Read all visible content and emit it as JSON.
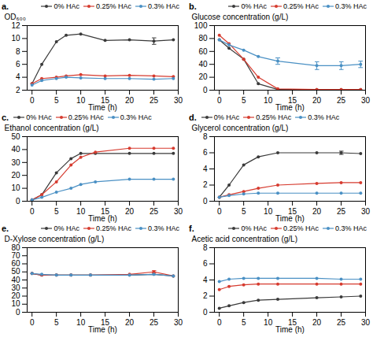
{
  "chart_data": [
    {
      "type": "line",
      "title": "a.",
      "xlabel": "Time (h)",
      "ylabel": "OD₆₀₀",
      "x": [
        0,
        2,
        5,
        7,
        10,
        15,
        20,
        25,
        29
      ],
      "series": [
        {
          "name": "0% HAc",
          "color": "#3a3a3a",
          "marker": "circle",
          "values": [
            3.0,
            6.0,
            9.5,
            10.5,
            10.7,
            9.7,
            9.8,
            9.6,
            9.8
          ],
          "errors": [
            null,
            null,
            null,
            null,
            null,
            null,
            null,
            0.5,
            null
          ]
        },
        {
          "name": "0.25% HAc",
          "color": "#d63b2f",
          "marker": "circle",
          "values": [
            3.0,
            3.8,
            4.0,
            4.2,
            4.4,
            4.2,
            4.3,
            4.2,
            4.1
          ]
        },
        {
          "name": "0.3% HAc",
          "color": "#4a90c4",
          "marker": "circle",
          "values": [
            2.8,
            3.5,
            3.8,
            4.0,
            3.9,
            3.8,
            3.8,
            3.7,
            3.8
          ]
        }
      ],
      "xlim": [
        -1,
        30
      ],
      "xticks": [
        0,
        5,
        10,
        15,
        20,
        25,
        30
      ],
      "ylim": [
        2,
        12
      ],
      "yticks": [
        2,
        4,
        6,
        8,
        10,
        12
      ],
      "legend": "upper right",
      "grid": false
    },
    {
      "type": "line",
      "title": "b.",
      "xlabel": "Time (h)",
      "ylabel": "Glucose concentration (g/L)",
      "x": [
        0,
        2,
        5,
        8,
        12,
        20,
        25,
        29
      ],
      "series": [
        {
          "name": "0% HAc",
          "color": "#3a3a3a",
          "marker": "circle",
          "values": [
            78,
            65,
            48,
            10,
            1,
            1,
            1,
            1
          ]
        },
        {
          "name": "0.25% HAc",
          "color": "#d63b2f",
          "marker": "circle",
          "values": [
            85,
            72,
            48,
            20,
            2,
            1,
            1,
            1
          ]
        },
        {
          "name": "0.3% HAc",
          "color": "#4a90c4",
          "marker": "circle",
          "values": [
            78,
            70,
            62,
            52,
            45,
            38,
            38,
            40
          ],
          "errors": [
            0,
            0,
            0,
            0,
            5,
            6,
            6,
            5
          ]
        }
      ],
      "xlim": [
        -1,
        30
      ],
      "xticks": [
        0,
        5,
        10,
        15,
        20,
        25,
        30
      ],
      "ylim": [
        0,
        100
      ],
      "yticks": [
        0,
        20,
        40,
        60,
        80,
        100
      ],
      "legend": "upper right",
      "grid": false
    },
    {
      "type": "line",
      "title": "c.",
      "xlabel": "Time (h)",
      "ylabel": "Ethanol concentration (g/L)",
      "x": [
        0,
        2,
        5,
        8,
        10,
        13,
        20,
        25,
        29
      ],
      "series": [
        {
          "name": "0% HAc",
          "color": "#3a3a3a",
          "marker": "circle",
          "values": [
            1,
            5,
            22,
            33,
            37,
            37,
            37,
            37,
            37
          ]
        },
        {
          "name": "0.25% HAc",
          "color": "#d63b2f",
          "marker": "circle",
          "values": [
            1,
            5,
            15,
            28,
            34,
            38,
            41,
            41,
            41
          ]
        },
        {
          "name": "0.3% HAc",
          "color": "#4a90c4",
          "marker": "circle",
          "values": [
            1,
            3,
            7,
            10,
            13,
            15,
            17,
            17,
            17
          ]
        }
      ],
      "xlim": [
        -1,
        30
      ],
      "xticks": [
        0,
        5,
        10,
        15,
        20,
        25,
        30
      ],
      "ylim": [
        0,
        50
      ],
      "yticks": [
        0,
        10,
        20,
        30,
        40,
        50
      ],
      "legend": "upper left",
      "grid": false
    },
    {
      "type": "line",
      "title": "d.",
      "xlabel": "Time (h)",
      "ylabel": "Glycerol concentration (g/L)",
      "x": [
        0,
        2,
        5,
        8,
        12,
        20,
        25,
        29
      ],
      "series": [
        {
          "name": "0% HAc",
          "color": "#3a3a3a",
          "marker": "circle",
          "values": [
            0.5,
            2.0,
            4.5,
            5.5,
            6.0,
            6.0,
            6.0,
            5.9
          ],
          "errors": [
            null,
            null,
            null,
            null,
            null,
            null,
            0.2,
            null
          ]
        },
        {
          "name": "0.25% HAc",
          "color": "#d63b2f",
          "marker": "circle",
          "values": [
            0.5,
            0.8,
            1.2,
            1.6,
            2.0,
            2.2,
            2.3,
            2.3
          ]
        },
        {
          "name": "0.3% HAc",
          "color": "#4a90c4",
          "marker": "circle",
          "values": [
            0.5,
            0.7,
            0.9,
            1.0,
            1.0,
            1.0,
            1.0,
            1.0
          ]
        }
      ],
      "xlim": [
        -1,
        30
      ],
      "xticks": [
        0,
        5,
        10,
        15,
        20,
        25,
        30
      ],
      "ylim": [
        0,
        8
      ],
      "yticks": [
        0,
        2,
        4,
        6,
        8
      ],
      "legend": "upper left",
      "grid": false
    },
    {
      "type": "line",
      "title": "e.",
      "xlabel": "Time (h)",
      "ylabel": "D-Xylose concentration (g/L)",
      "x": [
        0,
        2,
        5,
        8,
        12,
        20,
        25,
        29
      ],
      "series": [
        {
          "name": "0% HAc",
          "color": "#3a3a3a",
          "marker": "circle",
          "values": [
            48,
            46,
            46,
            46,
            46,
            46,
            47,
            45
          ]
        },
        {
          "name": "0.25% HAc",
          "color": "#d63b2f",
          "marker": "circle",
          "values": [
            48,
            46,
            46,
            46,
            46,
            47,
            50,
            45
          ],
          "errors": [
            null,
            null,
            null,
            null,
            null,
            null,
            1.5,
            null
          ]
        },
        {
          "name": "0.3% HAc",
          "color": "#4a90c4",
          "marker": "circle",
          "values": [
            48,
            47,
            46,
            46,
            46,
            46,
            47,
            45
          ]
        }
      ],
      "xlim": [
        -1,
        30
      ],
      "xticks": [
        0,
        5,
        10,
        15,
        20,
        25,
        30
      ],
      "ylim": [
        0,
        80
      ],
      "yticks": [
        0,
        10,
        20,
        30,
        40,
        50,
        60,
        70,
        80
      ],
      "legend": "upper right",
      "grid": false
    },
    {
      "type": "line",
      "title": "f.",
      "xlabel": "Time (h)",
      "ylabel": "Acetic acid concentration (g/L)",
      "x": [
        0,
        2,
        5,
        8,
        12,
        20,
        25,
        29
      ],
      "series": [
        {
          "name": "0% HAc",
          "color": "#3a3a3a",
          "marker": "circle",
          "values": [
            0.5,
            0.8,
            1.2,
            1.5,
            1.6,
            1.8,
            1.9,
            2.0
          ]
        },
        {
          "name": "0.25% HAc",
          "color": "#d63b2f",
          "marker": "circle",
          "values": [
            2.8,
            3.2,
            3.4,
            3.5,
            3.5,
            3.5,
            3.5,
            3.5
          ]
        },
        {
          "name": "0.3% HAc",
          "color": "#4a90c4",
          "marker": "circle",
          "values": [
            3.8,
            4.1,
            4.2,
            4.2,
            4.2,
            4.2,
            4.1,
            4.1
          ]
        }
      ],
      "xlim": [
        -1,
        30
      ],
      "xticks": [
        0,
        5,
        10,
        15,
        20,
        25,
        30
      ],
      "ylim": [
        0,
        8
      ],
      "yticks": [
        0,
        2,
        4,
        6,
        8
      ],
      "legend": "upper right",
      "grid": false
    }
  ]
}
